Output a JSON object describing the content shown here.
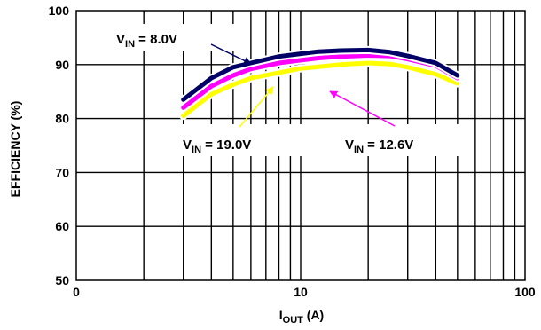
{
  "chart_data": {
    "type": "line",
    "xlabel": {
      "main": "I",
      "sub": "OUT",
      "unit": " (A)"
    },
    "ylabel": "EFFICIENCY (%)",
    "xscale": "log",
    "xlim": [
      1,
      100
    ],
    "ylim": [
      50,
      100
    ],
    "grid": true,
    "legend": "none",
    "x_tick_labels": [
      {
        "value": 1,
        "label": "0"
      },
      {
        "value": 10,
        "label": "10"
      },
      {
        "value": 100,
        "label": "100"
      }
    ],
    "y_ticks": [
      50,
      60,
      70,
      80,
      90,
      100
    ],
    "series": [
      {
        "color": "#FFFF00",
        "annotation": {
          "main": "V",
          "sub": "IN",
          "rest": " = 19.0V"
        },
        "x": [
          3,
          4,
          5,
          6,
          8,
          10,
          12,
          15,
          20,
          25,
          30,
          40,
          50
        ],
        "y": [
          80.5,
          84.5,
          86.3,
          87.5,
          88.5,
          89.3,
          89.6,
          90.0,
          90.3,
          90.1,
          89.5,
          88.2,
          86.5
        ]
      },
      {
        "color": "#FF00FF",
        "annotation": {
          "main": "V",
          "sub": "IN",
          "rest": " = 12.6V"
        },
        "x": [
          3,
          4,
          5,
          6,
          8,
          10,
          12,
          15,
          20,
          25,
          30,
          40,
          50
        ],
        "y": [
          82.0,
          86.0,
          88.0,
          89.2,
          90.3,
          90.8,
          91.2,
          91.5,
          91.7,
          91.6,
          91.0,
          89.8,
          87.5
        ]
      },
      {
        "color": "#000066",
        "annotation": {
          "main": "V",
          "sub": "IN",
          "rest": " = 8.0V"
        },
        "x": [
          3,
          4,
          5,
          6,
          8,
          10,
          12,
          15,
          20,
          25,
          30,
          40,
          50
        ],
        "y": [
          83.5,
          87.5,
          89.5,
          90.3,
          91.5,
          92.0,
          92.4,
          92.6,
          92.7,
          92.3,
          91.6,
          90.3,
          88.0
        ]
      }
    ]
  }
}
